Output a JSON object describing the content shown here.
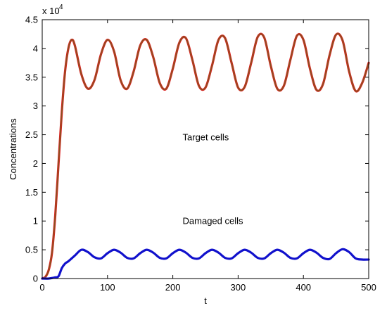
{
  "chart_data": {
    "type": "line",
    "title": "",
    "xlabel": "t",
    "ylabel": "Concentrations",
    "xlim": [
      0,
      500
    ],
    "ylim": [
      0,
      45000
    ],
    "xticks": [
      0,
      100,
      200,
      300,
      400,
      500
    ],
    "xtick_labels": [
      "0",
      "100",
      "200",
      "300",
      "400",
      "500"
    ],
    "yticks": [
      0,
      5000,
      10000,
      15000,
      20000,
      25000,
      30000,
      35000,
      40000,
      45000
    ],
    "ytick_labels": [
      "0",
      "0.5",
      "1",
      "1.5",
      "2",
      "2.5",
      "3",
      "3.5",
      "4",
      "4.5"
    ],
    "y_multiplier_base": "x 10",
    "y_multiplier_exponent": "4",
    "grid": false,
    "annotations": [
      {
        "text": "Target cells",
        "x": 215,
        "y": 24000
      },
      {
        "text": "Damaged cells",
        "x": 215,
        "y": 9500
      }
    ],
    "series": [
      {
        "color": "#dd2222",
        "overlay_color": "#7a5a1e",
        "x": [
          0,
          5,
          10,
          15,
          20,
          25,
          30,
          35,
          40,
          45,
          50,
          60,
          70,
          80,
          90,
          100,
          110,
          120,
          130,
          140,
          150,
          160,
          170,
          180,
          190,
          200,
          210,
          220,
          230,
          240,
          250,
          260,
          270,
          280,
          290,
          300,
          310,
          320,
          330,
          340,
          350,
          360,
          370,
          380,
          390,
          400,
          410,
          420,
          430,
          440,
          450,
          460,
          470,
          480,
          490,
          500
        ],
        "values": [
          0,
          300,
          1500,
          4500,
          11000,
          20000,
          29000,
          36000,
          40000,
          41500,
          40500,
          35500,
          33000,
          34500,
          39000,
          41500,
          39500,
          34500,
          33000,
          36000,
          40500,
          41500,
          38500,
          34000,
          33000,
          36500,
          41000,
          41800,
          38000,
          33500,
          33200,
          37000,
          41500,
          41800,
          37500,
          33200,
          33300,
          37500,
          42000,
          41900,
          37000,
          33000,
          33500,
          38000,
          42200,
          41500,
          36500,
          32800,
          33800,
          38800,
          42400,
          41400,
          36000,
          32600,
          34000,
          37500
        ]
      },
      {
        "color": "#1111cc",
        "x": [
          0,
          10,
          20,
          25,
          30,
          35,
          40,
          50,
          60,
          70,
          80,
          90,
          100,
          110,
          120,
          130,
          140,
          150,
          160,
          170,
          180,
          190,
          200,
          210,
          220,
          230,
          240,
          250,
          260,
          270,
          280,
          290,
          300,
          310,
          320,
          330,
          340,
          350,
          360,
          370,
          380,
          390,
          400,
          410,
          420,
          430,
          440,
          450,
          460,
          470,
          480,
          490,
          500
        ],
        "values": [
          0,
          0,
          200,
          400,
          1800,
          2600,
          3000,
          4000,
          5000,
          4600,
          3700,
          3500,
          4400,
          5000,
          4500,
          3600,
          3500,
          4400,
          5000,
          4500,
          3600,
          3500,
          4400,
          5000,
          4500,
          3600,
          3500,
          4400,
          5000,
          4500,
          3600,
          3500,
          4400,
          5000,
          4500,
          3600,
          3500,
          4400,
          5000,
          4500,
          3600,
          3500,
          4400,
          5000,
          4500,
          3600,
          3400,
          4400,
          5100,
          4600,
          3500,
          3300,
          3300
        ]
      }
    ]
  }
}
